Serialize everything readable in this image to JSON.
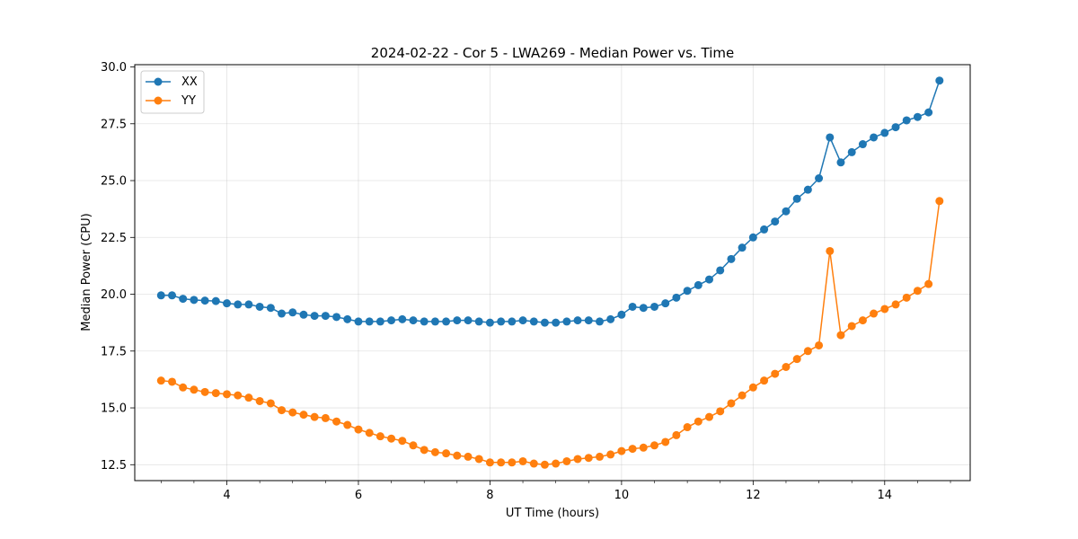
{
  "chart_data": {
    "type": "line",
    "title": "2024-02-22 - Cor 5 - LWA269 - Median Power vs. Time",
    "xlabel": "UT Time (hours)",
    "ylabel": "Median Power (CPU)",
    "xlim": [
      2.6,
      15.3
    ],
    "ylim": [
      11.8,
      30.1
    ],
    "xticks": [
      4,
      6,
      8,
      10,
      12,
      14
    ],
    "xtick_labels": [
      "4",
      "6",
      "8",
      "10",
      "12",
      "14"
    ],
    "xminor_step": 0.5,
    "yticks": [
      12.5,
      15.0,
      17.5,
      20.0,
      22.5,
      25.0,
      27.5,
      30.0
    ],
    "ytick_labels": [
      "12.5",
      "15.0",
      "17.5",
      "20.0",
      "22.5",
      "25.0",
      "27.5",
      "30.0"
    ],
    "grid": true,
    "legend_position": "top-left",
    "x": [
      3.0,
      3.167,
      3.333,
      3.5,
      3.667,
      3.833,
      4.0,
      4.167,
      4.333,
      4.5,
      4.667,
      4.833,
      5.0,
      5.167,
      5.333,
      5.5,
      5.667,
      5.833,
      6.0,
      6.167,
      6.333,
      6.5,
      6.667,
      6.833,
      7.0,
      7.167,
      7.333,
      7.5,
      7.667,
      7.833,
      8.0,
      8.167,
      8.333,
      8.5,
      8.667,
      8.833,
      9.0,
      9.167,
      9.333,
      9.5,
      9.667,
      9.833,
      10.0,
      10.167,
      10.333,
      10.5,
      10.667,
      10.833,
      11.0,
      11.167,
      11.333,
      11.5,
      11.667,
      11.833,
      12.0,
      12.167,
      12.333,
      12.5,
      12.667,
      12.833,
      13.0,
      13.167,
      13.333,
      13.5,
      13.667,
      13.833,
      14.0,
      14.167,
      14.333,
      14.5,
      14.667,
      14.833
    ],
    "series": [
      {
        "name": "XX",
        "color": "#1f77b4",
        "values": [
          19.95,
          19.95,
          19.8,
          19.75,
          19.72,
          19.7,
          19.6,
          19.55,
          19.55,
          19.45,
          19.4,
          19.15,
          19.2,
          19.1,
          19.05,
          19.05,
          19.0,
          18.9,
          18.8,
          18.8,
          18.8,
          18.85,
          18.9,
          18.85,
          18.8,
          18.8,
          18.8,
          18.85,
          18.85,
          18.8,
          18.75,
          18.8,
          18.8,
          18.85,
          18.8,
          18.75,
          18.75,
          18.8,
          18.85,
          18.85,
          18.8,
          18.9,
          19.1,
          19.45,
          19.4,
          19.45,
          19.6,
          19.85,
          20.15,
          20.4,
          20.65,
          21.05,
          21.55,
          22.05,
          22.5,
          22.85,
          23.2,
          23.65,
          24.2,
          24.6,
          25.1,
          26.9,
          25.8,
          26.25,
          26.6,
          26.9,
          27.1,
          27.35,
          27.65,
          27.8,
          28.0,
          29.4
        ]
      },
      {
        "name": "YY",
        "color": "#ff7f0e",
        "values": [
          16.2,
          16.15,
          15.9,
          15.8,
          15.7,
          15.65,
          15.6,
          15.55,
          15.45,
          15.3,
          15.2,
          14.9,
          14.8,
          14.7,
          14.6,
          14.55,
          14.4,
          14.25,
          14.05,
          13.9,
          13.75,
          13.65,
          13.55,
          13.35,
          13.15,
          13.05,
          13.0,
          12.9,
          12.85,
          12.75,
          12.6,
          12.6,
          12.6,
          12.65,
          12.55,
          12.5,
          12.55,
          12.65,
          12.75,
          12.8,
          12.85,
          12.95,
          13.1,
          13.2,
          13.25,
          13.35,
          13.5,
          13.8,
          14.15,
          14.4,
          14.6,
          14.85,
          15.2,
          15.55,
          15.9,
          16.2,
          16.5,
          16.8,
          17.15,
          17.5,
          17.75,
          21.9,
          18.2,
          18.6,
          18.85,
          19.15,
          19.35,
          19.55,
          19.85,
          20.15,
          20.45,
          24.1
        ]
      }
    ]
  }
}
